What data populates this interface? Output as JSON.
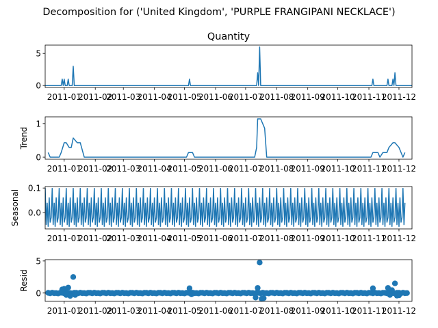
{
  "figure": {
    "suptitle": "Decomposition for ('United Kingdom', 'PURPLE FRANGIPANI NECKLACE')"
  },
  "chart_data": [
    {
      "type": "line",
      "title": "Quantity",
      "ylabel": "",
      "color": "#1f77b4",
      "xlim": [
        "2010-12-13",
        "2011-12-14"
      ],
      "ylim": [
        -0.3,
        6.3
      ],
      "yticks": [
        0,
        5
      ],
      "xticks": [
        "2011-01",
        "2011-02",
        "2011-03",
        "2011-04",
        "2011-05",
        "2011-06",
        "2011-07",
        "2011-08",
        "2011-09",
        "2011-10",
        "2011-11",
        "2011-12"
      ],
      "baseline": 0,
      "spikes": [
        {
          "x": "2010-12-30",
          "y": 1
        },
        {
          "x": "2011-01-01",
          "y": 1
        },
        {
          "x": "2011-01-05",
          "y": 1
        },
        {
          "x": "2011-01-10",
          "y": 3
        },
        {
          "x": "2011-05-06",
          "y": 1
        },
        {
          "x": "2011-07-13",
          "y": 2
        },
        {
          "x": "2011-07-15",
          "y": 6
        },
        {
          "x": "2011-11-05",
          "y": 1
        },
        {
          "x": "2011-11-20",
          "y": 1
        },
        {
          "x": "2011-11-25",
          "y": 1
        },
        {
          "x": "2011-11-27",
          "y": 2
        }
      ]
    },
    {
      "type": "line",
      "title": "",
      "ylabel": "Trend",
      "color": "#1f77b4",
      "xlim": [
        "2010-12-13",
        "2011-12-14"
      ],
      "ylim": [
        -0.06,
        1.2
      ],
      "yticks": [
        0,
        1
      ],
      "xticks": [
        "2011-01",
        "2011-02",
        "2011-03",
        "2011-04",
        "2011-05",
        "2011-06",
        "2011-07",
        "2011-08",
        "2011-09",
        "2011-10",
        "2011-11",
        "2011-12"
      ],
      "x": [
        "2010-12-16",
        "2010-12-18",
        "2010-12-27",
        "2010-12-29",
        "2011-01-01",
        "2011-01-03",
        "2011-01-06",
        "2011-01-08",
        "2011-01-10",
        "2011-01-14",
        "2011-01-17",
        "2011-01-21",
        "2011-05-03",
        "2011-05-05",
        "2011-05-09",
        "2011-05-11",
        "2011-07-10",
        "2011-07-12",
        "2011-07-13",
        "2011-07-16",
        "2011-07-18",
        "2011-07-20",
        "2011-07-22",
        "2011-11-03",
        "2011-11-05",
        "2011-11-10",
        "2011-11-12",
        "2011-11-15",
        "2011-11-19",
        "2011-11-21",
        "2011-11-25",
        "2011-11-27",
        "2011-12-01",
        "2011-12-05",
        "2011-12-07"
      ],
      "values": [
        0.14,
        0,
        0,
        0.14,
        0.43,
        0.43,
        0.29,
        0.29,
        0.57,
        0.43,
        0.43,
        0,
        0,
        0.14,
        0.14,
        0,
        0,
        0.29,
        1.14,
        1.14,
        1.0,
        0.86,
        0,
        0,
        0.14,
        0.14,
        0,
        0.14,
        0.14,
        0.29,
        0.43,
        0.43,
        0.29,
        0,
        0.14
      ]
    },
    {
      "type": "line",
      "title": "",
      "ylabel": "Seasonal",
      "color": "#1f77b4",
      "xlim": [
        "2010-12-13",
        "2011-12-14"
      ],
      "ylim": [
        -0.066,
        0.106
      ],
      "yticks": [
        0.0,
        0.1
      ],
      "ytick_labels": [
        "0.0",
        "0.1"
      ],
      "xticks": [
        "2011-01",
        "2011-02",
        "2011-03",
        "2011-04",
        "2011-05",
        "2011-06",
        "2011-07",
        "2011-08",
        "2011-09",
        "2011-10",
        "2011-11",
        "2011-12"
      ],
      "start": "2010-12-13",
      "period_days": 7,
      "cycle_values": [
        0.1,
        -0.05,
        0.04,
        -0.057,
        0.062,
        -0.04,
        -0.02
      ],
      "n_points": 360
    },
    {
      "type": "scatter",
      "title": "",
      "ylabel": "Resid",
      "color": "#1f77b4",
      "xlim": [
        "2010-12-13",
        "2011-12-14"
      ],
      "ylim": [
        -1.3,
        5.2
      ],
      "yticks": [
        0,
        5
      ],
      "xticks": [
        "2011-01",
        "2011-02",
        "2011-03",
        "2011-04",
        "2011-05",
        "2011-06",
        "2011-07",
        "2011-08",
        "2011-09",
        "2011-10",
        "2011-11",
        "2011-12"
      ],
      "start": "2010-12-16",
      "interval_days": 2,
      "n_points": 180,
      "baseline_wiggle": [
        0.03,
        -0.04,
        0.05,
        -0.02,
        0.0,
        -0.06,
        0.04
      ],
      "outliers": [
        {
          "x": "2010-12-30",
          "y": 0.55
        },
        {
          "x": "2011-01-01",
          "y": 0.65
        },
        {
          "x": "2011-01-03",
          "y": -0.3
        },
        {
          "x": "2011-01-05",
          "y": 0.85
        },
        {
          "x": "2011-01-07",
          "y": -0.45
        },
        {
          "x": "2011-01-10",
          "y": 2.5
        },
        {
          "x": "2011-01-12",
          "y": -0.3
        },
        {
          "x": "2011-05-06",
          "y": 0.75
        },
        {
          "x": "2011-05-08",
          "y": -0.2
        },
        {
          "x": "2011-07-11",
          "y": -0.7
        },
        {
          "x": "2011-07-13",
          "y": 0.8
        },
        {
          "x": "2011-07-15",
          "y": 4.75
        },
        {
          "x": "2011-07-17",
          "y": -0.9
        },
        {
          "x": "2011-07-19",
          "y": -0.8
        },
        {
          "x": "2011-11-05",
          "y": 0.75
        },
        {
          "x": "2011-11-20",
          "y": 0.8
        },
        {
          "x": "2011-11-22",
          "y": -0.3
        },
        {
          "x": "2011-11-24",
          "y": 0.45
        },
        {
          "x": "2011-11-27",
          "y": 1.5
        },
        {
          "x": "2011-11-29",
          "y": -0.4
        },
        {
          "x": "2011-12-01",
          "y": -0.35
        }
      ]
    }
  ]
}
